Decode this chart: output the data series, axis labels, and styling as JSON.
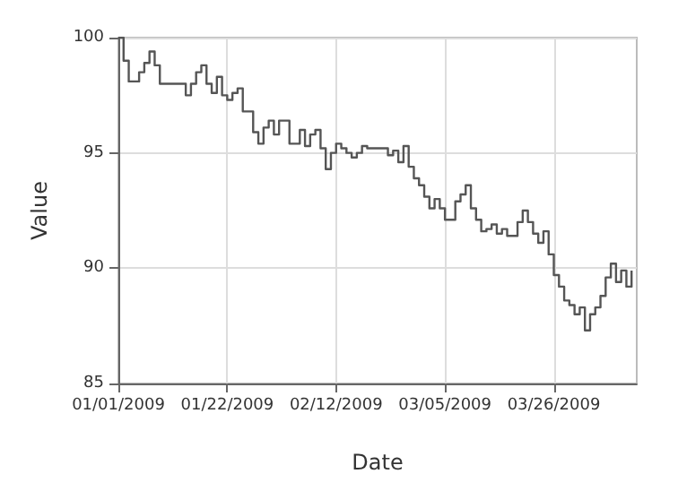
{
  "chart_data": {
    "type": "step",
    "xlabel": "Date",
    "ylabel": "Value",
    "color": "#555555",
    "x": [
      "2009-01-01",
      "2009-01-02",
      "2009-01-03",
      "2009-01-05",
      "2009-01-06",
      "2009-01-07",
      "2009-01-08",
      "2009-01-09",
      "2009-01-14",
      "2009-01-15",
      "2009-01-16",
      "2009-01-17",
      "2009-01-18",
      "2009-01-19",
      "2009-01-20",
      "2009-01-21",
      "2009-01-22",
      "2009-01-23",
      "2009-01-24",
      "2009-01-25",
      "2009-01-27",
      "2009-01-28",
      "2009-01-29",
      "2009-01-30",
      "2009-01-31",
      "2009-02-01",
      "2009-02-03",
      "2009-02-05",
      "2009-02-06",
      "2009-02-07",
      "2009-02-08",
      "2009-02-09",
      "2009-02-10",
      "2009-02-11",
      "2009-02-12",
      "2009-02-13",
      "2009-02-14",
      "2009-02-15",
      "2009-02-16",
      "2009-02-17",
      "2009-02-18",
      "2009-02-22",
      "2009-02-23",
      "2009-02-24",
      "2009-02-25",
      "2009-02-26",
      "2009-02-27",
      "2009-02-28",
      "2009-03-01",
      "2009-03-02",
      "2009-03-03",
      "2009-03-04",
      "2009-03-05",
      "2009-03-07",
      "2009-03-08",
      "2009-03-09",
      "2009-03-10",
      "2009-03-11",
      "2009-03-12",
      "2009-03-13",
      "2009-03-14",
      "2009-03-15",
      "2009-03-16",
      "2009-03-17",
      "2009-03-19",
      "2009-03-20",
      "2009-03-21",
      "2009-03-22",
      "2009-03-23",
      "2009-03-24",
      "2009-03-25",
      "2009-03-26",
      "2009-03-27",
      "2009-03-28",
      "2009-03-29",
      "2009-03-30",
      "2009-03-31",
      "2009-04-01",
      "2009-04-02",
      "2009-04-03",
      "2009-04-04",
      "2009-04-05",
      "2009-04-06",
      "2009-04-07",
      "2009-04-08",
      "2009-04-09",
      "2009-04-10"
    ],
    "values": [
      100.0,
      99.0,
      98.1,
      98.5,
      98.9,
      99.4,
      98.8,
      98.0,
      97.5,
      98.0,
      98.5,
      98.8,
      98.0,
      97.6,
      98.3,
      97.5,
      97.3,
      97.6,
      97.8,
      96.8,
      95.9,
      95.4,
      96.1,
      96.4,
      95.8,
      96.4,
      95.4,
      96.0,
      95.3,
      95.8,
      96.0,
      95.2,
      94.3,
      95.0,
      95.4,
      95.2,
      95.0,
      94.8,
      95.0,
      95.3,
      95.2,
      94.9,
      95.1,
      94.6,
      95.3,
      94.4,
      93.9,
      93.6,
      93.1,
      92.6,
      93.0,
      92.6,
      92.1,
      92.9,
      93.2,
      93.6,
      92.6,
      92.1,
      91.6,
      91.7,
      91.9,
      91.5,
      91.7,
      91.4,
      92.0,
      92.5,
      92.0,
      91.5,
      91.1,
      91.6,
      90.6,
      89.7,
      89.2,
      88.6,
      88.4,
      88.0,
      88.3,
      87.3,
      88.0,
      88.3,
      88.8,
      89.6,
      90.2,
      89.4,
      89.9,
      89.2,
      89.9
    ],
    "xlim": [
      "2009-01-01",
      "2009-04-11"
    ],
    "xticks": [
      {
        "value": "2009-01-01",
        "label": "01/01/2009"
      },
      {
        "value": "2009-01-22",
        "label": "01/22/2009"
      },
      {
        "value": "2009-02-12",
        "label": "02/12/2009"
      },
      {
        "value": "2009-03-05",
        "label": "03/05/2009"
      },
      {
        "value": "2009-03-26",
        "label": "03/26/2009"
      }
    ],
    "ylim": [
      85,
      100
    ],
    "yticks": [
      85,
      90,
      95,
      100
    ],
    "grid": true,
    "marker": "none",
    "line_style": "solid"
  }
}
